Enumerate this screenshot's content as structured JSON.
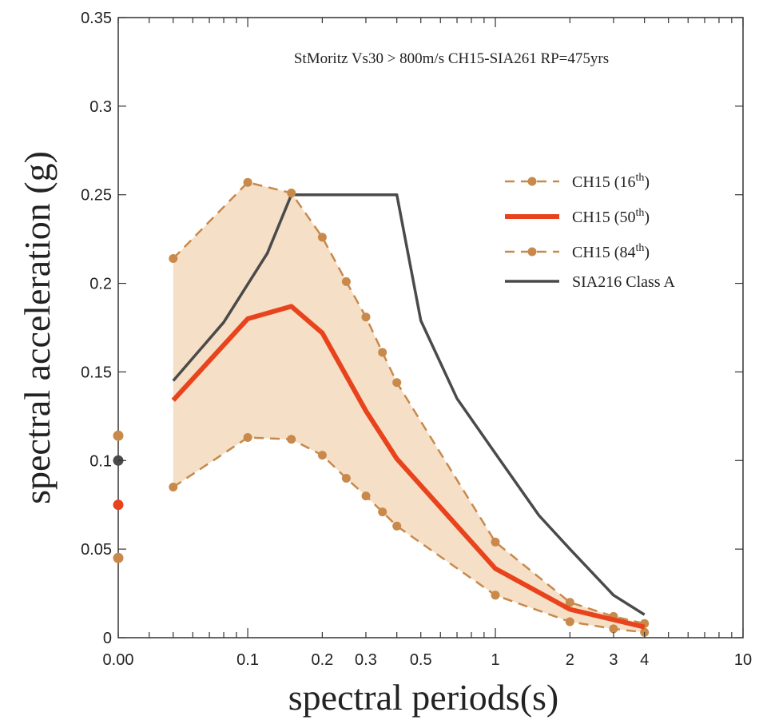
{
  "chart_data": {
    "type": "line",
    "title": "StMoritz  Vs30 > 800m/s  CH15-SIA261 RP=475yrs",
    "xlabel": "spectral periods(s)",
    "ylabel": "spectral acceleration (g)",
    "xscale": "log",
    "xlim": [
      0.03,
      10
    ],
    "ylim": [
      0,
      0.35
    ],
    "grid": false,
    "legend_position": "top-right",
    "x_ticks": [
      {
        "value": 0.1,
        "label": "0.1"
      },
      {
        "value": 0.2,
        "label": "0.2"
      },
      {
        "value": 0.3,
        "label": "0.3"
      },
      {
        "value": 0.5,
        "label": "0.5"
      },
      {
        "value": 1,
        "label": "1"
      },
      {
        "value": 2,
        "label": "2"
      },
      {
        "value": 3,
        "label": "3"
      },
      {
        "value": 4,
        "label": "4"
      },
      {
        "value": 10,
        "label": "10"
      }
    ],
    "x_zero_label": "0.00",
    "y_ticks": [
      {
        "value": 0,
        "label": "0"
      },
      {
        "value": 0.05,
        "label": "0.05"
      },
      {
        "value": 0.1,
        "label": "0.1"
      },
      {
        "value": 0.15,
        "label": "0.15"
      },
      {
        "value": 0.2,
        "label": "0.2"
      },
      {
        "value": 0.25,
        "label": "0.25"
      },
      {
        "value": 0.3,
        "label": "0.3"
      },
      {
        "value": 0.35,
        "label": "0.35"
      }
    ],
    "series": [
      {
        "key": "p16",
        "legend_main": "CH15 (16",
        "legend_sup": "th",
        "legend_close": ")",
        "color": "#c8894b",
        "style": "dashed-dots",
        "x": [
          0.05,
          0.1,
          0.15,
          0.2,
          0.25,
          0.3,
          0.35,
          0.4,
          1,
          2,
          3,
          4
        ],
        "y": [
          0.214,
          0.257,
          0.251,
          0.226,
          0.201,
          0.181,
          0.161,
          0.144,
          0.054,
          0.02,
          0.012,
          0.008
        ]
      },
      {
        "key": "p50",
        "legend_main": "CH15 (50",
        "legend_sup": "th",
        "legend_close": ")",
        "color": "#e8431c",
        "style": "solid-thick",
        "x": [
          0.05,
          0.1,
          0.15,
          0.2,
          0.3,
          0.4,
          1,
          2,
          4
        ],
        "y": [
          0.134,
          0.18,
          0.187,
          0.172,
          0.128,
          0.101,
          0.039,
          0.016,
          0.006
        ]
      },
      {
        "key": "p84",
        "legend_main": "CH15 (84",
        "legend_sup": "th",
        "legend_close": ")",
        "color": "#c8894b",
        "style": "dashed-dots",
        "x": [
          0.05,
          0.1,
          0.15,
          0.2,
          0.25,
          0.3,
          0.35,
          0.4,
          1,
          2,
          3,
          4
        ],
        "y": [
          0.085,
          0.113,
          0.112,
          0.103,
          0.09,
          0.08,
          0.071,
          0.063,
          0.024,
          0.009,
          0.005,
          0.003
        ]
      },
      {
        "key": "sia",
        "legend_main": "SIA216 Class A",
        "legend_sup": "",
        "legend_close": "",
        "color": "#4a4a4a",
        "style": "solid",
        "x": [
          0.05,
          0.08,
          0.12,
          0.15,
          0.4,
          0.5,
          0.7,
          1,
          1.5,
          2,
          3,
          4
        ],
        "y": [
          0.145,
          0.178,
          0.217,
          0.25,
          0.25,
          0.179,
          0.135,
          0.104,
          0.069,
          0.05,
          0.024,
          0.013
        ]
      }
    ],
    "band": {
      "between": [
        "p16",
        "p84"
      ],
      "color": "#f5dfc6"
    },
    "zero_period_points": [
      {
        "y": 0.114,
        "color": "#c8894b"
      },
      {
        "y": 0.1,
        "color": "#4a4a4a"
      },
      {
        "y": 0.075,
        "color": "#e8431c"
      },
      {
        "y": 0.045,
        "color": "#c8894b"
      }
    ]
  }
}
